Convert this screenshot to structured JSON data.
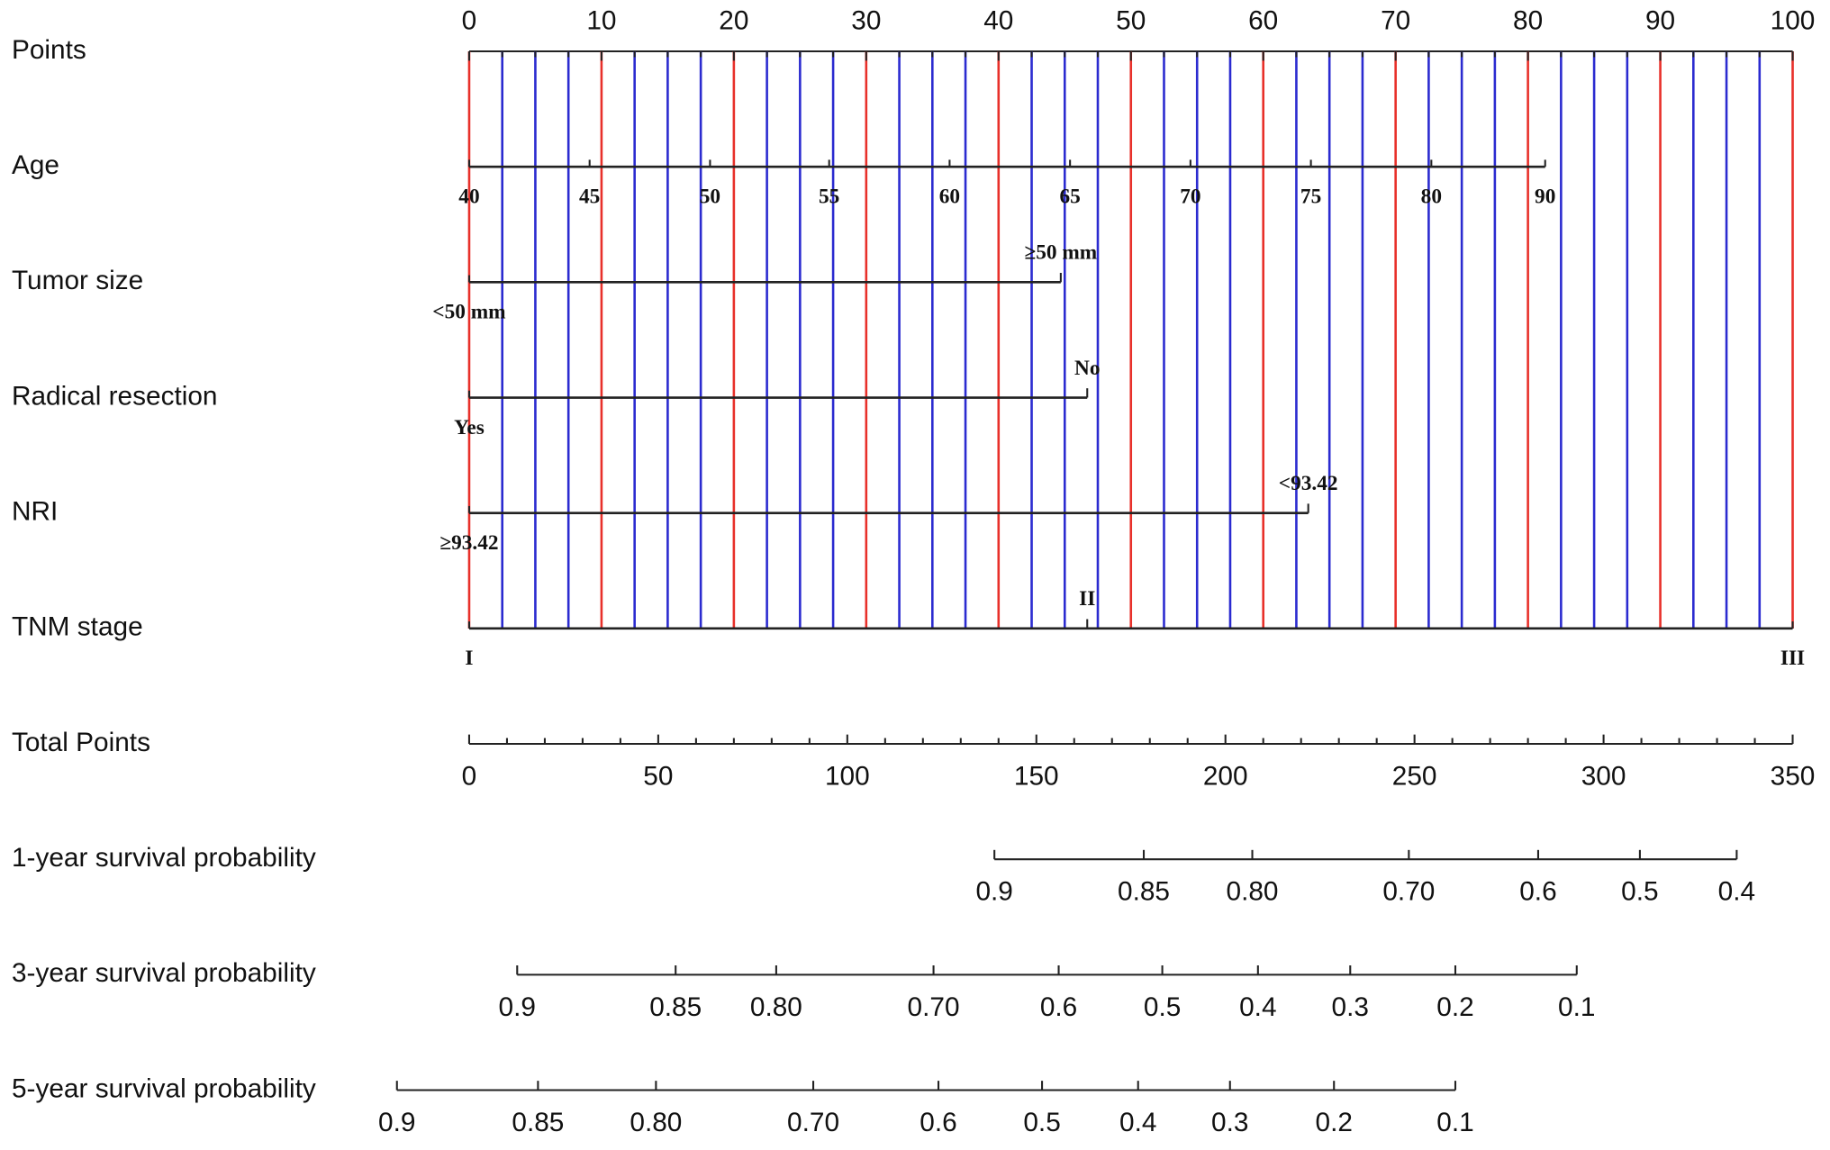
{
  "chart_data": {
    "type": "nomogram",
    "points_axis": {
      "label": "Points",
      "xlim": [
        0,
        100
      ],
      "xticks": [
        0,
        10,
        20,
        30,
        40,
        50,
        60,
        70,
        80,
        90,
        100
      ],
      "minor_xticks": [
        2.5,
        5,
        7.5,
        12.5,
        15,
        17.5,
        22.5,
        25,
        27.5,
        32.5,
        35,
        37.5,
        42.5,
        45,
        47.5,
        52.5,
        55,
        57.5,
        62.5,
        65,
        67.5,
        72.5,
        75,
        77.5,
        82.5,
        85,
        87.5,
        92.5,
        95,
        97.5
      ],
      "major_grid_color": "#e8302a",
      "minor_grid_color": "#2b2bd0"
    },
    "variables": [
      {
        "label": "Age",
        "values": [
          40,
          45,
          50,
          55,
          60,
          65,
          70,
          75,
          80,
          90
        ],
        "points": [
          0,
          9.1,
          18.2,
          27.2,
          36.3,
          45.4,
          54.5,
          63.6,
          72.7,
          81.3
        ],
        "label_side": [
          "below",
          "below",
          "below",
          "below",
          "below",
          "below",
          "below",
          "below",
          "below",
          "below"
        ]
      },
      {
        "label": "Tumor size",
        "levels": [
          "<50 mm",
          "≥50 mm"
        ],
        "points": [
          0,
          44.7
        ],
        "label_side": [
          "below",
          "above"
        ]
      },
      {
        "label": "Radical resection",
        "levels": [
          "Yes",
          "No"
        ],
        "points": [
          0,
          46.7
        ],
        "label_side": [
          "below",
          "above"
        ]
      },
      {
        "label": "NRI",
        "levels": [
          "≥93.42",
          "<93.42"
        ],
        "points": [
          0,
          63.4
        ],
        "label_side": [
          "below",
          "above"
        ]
      },
      {
        "label": "TNM stage",
        "levels": [
          "I",
          "II",
          "III"
        ],
        "points": [
          0,
          46.7,
          100
        ],
        "label_side": [
          "below",
          "above",
          "below"
        ]
      }
    ],
    "total_points": {
      "label": "Total Points",
      "xlim": [
        0,
        350
      ],
      "xticks": [
        0,
        50,
        100,
        150,
        200,
        250,
        300,
        350
      ],
      "minor_xticks": [
        10,
        20,
        30,
        40,
        60,
        70,
        80,
        90,
        110,
        120,
        130,
        140,
        160,
        170,
        180,
        190,
        210,
        220,
        230,
        240,
        260,
        270,
        280,
        290,
        310,
        320,
        330,
        340
      ]
    },
    "survival": [
      {
        "label": "1-year survival probability",
        "ticks": [
          0.9,
          0.85,
          {
            "value": 0.8,
            "label": "0.80"
          },
          {
            "value": 0.7,
            "label": "0.70"
          },
          0.6,
          0.5,
          0.4
        ],
        "points": [
          138.9,
          178.4,
          207.1,
          248.5,
          282.7,
          309.6,
          335.2
        ]
      },
      {
        "label": "3-year survival probability",
        "ticks": [
          0.9,
          0.85,
          {
            "value": 0.8,
            "label": "0.80"
          },
          {
            "value": 0.7,
            "label": "0.70"
          },
          0.6,
          0.5,
          0.4,
          0.3,
          0.2,
          0.1
        ],
        "points": [
          12.7,
          54.6,
          81.2,
          122.8,
          155.9,
          183.3,
          208.6,
          233.0,
          260.8,
          292.9
        ]
      },
      {
        "label": "5-year survival probability",
        "ticks": [
          0.9,
          0.85,
          {
            "value": 0.8,
            "label": "0.80"
          },
          {
            "value": 0.7,
            "label": "0.70"
          },
          0.6,
          0.5,
          0.4,
          0.3,
          0.2,
          0.1
        ],
        "points": [
          -19.1,
          18.2,
          49.4,
          91.0,
          124.1,
          151.5,
          176.9,
          201.2,
          228.7,
          260.8
        ]
      }
    ]
  }
}
